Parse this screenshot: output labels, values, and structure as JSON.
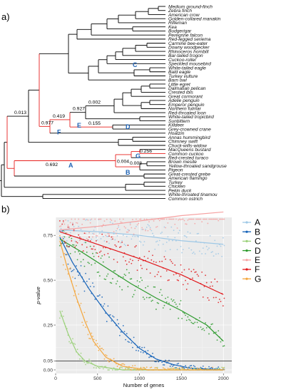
{
  "panel_a_label": "a)",
  "panel_b_label": "b)",
  "tree": {
    "taxa": [
      "Medium ground-finch",
      "Zebra finch",
      "American crow",
      "Golden-collared manakin",
      "Rifleman",
      "Kea",
      "Budgerigar",
      "Peregrine falcon",
      "Red-legged seriema",
      "Carmine bee-eater",
      "Downy woodpecker",
      "Rhinoceros hornbill",
      "Bar-tailed trogon",
      "Cuckoo-roller",
      "Speckled mousebird",
      "White-tailed eagle",
      "Bald eagle",
      "Turkey vulture",
      "Barn owl",
      "Little egret",
      "Dalmatian pelican",
      "Crested ibis",
      "Great cormorant",
      "Adelie penguin",
      "Emperor penguin",
      "Northern fulmar",
      "Red-throated loon",
      "White-tailed tropicbird",
      "Sunbittern",
      "Killdeer",
      "Grey-crowned crane",
      "Hoatzin",
      "Annas hummingbird",
      "Chimney swift",
      "Chuck-wills-widow",
      "MacQueens bustard",
      "Common cuckoo",
      "Red-crested turaco",
      "Brown mesite",
      "Yellow-throated sandgrouse",
      "Pigeon",
      "Great-crested grebe",
      "American flamingo",
      "Turkey",
      "Chicken",
      "Pekin duck",
      "White-throated tinamou",
      "Common ostrich"
    ],
    "branch_lengths": {
      "F": "0.977",
      "root": "0.013",
      "E": "0.419",
      "inner": "0.927",
      "node": "0.002",
      "D": "0.155",
      "A": "0.692",
      "B": "0.004",
      "G": "0.256",
      "B2": "0.008"
    },
    "branch_letters": [
      "A",
      "B",
      "C",
      "D",
      "E",
      "F",
      "G"
    ],
    "red_color": "#e8201e",
    "letter_color": "#1f63b5"
  },
  "chart_data": {
    "type": "scatter",
    "xlabel": "Number of genes",
    "ylabel": "p-value",
    "xlim": [
      0,
      2100
    ],
    "ylim": [
      -0.02,
      0.85
    ],
    "xticks": [
      0,
      500,
      1000,
      1500,
      2000
    ],
    "yticks": [
      0.0,
      0.05,
      0.25,
      0.5,
      0.75
    ],
    "ytick_labels": [
      "0.00",
      "0.05",
      "0.25",
      "0.50",
      "0.75"
    ],
    "hline": 0.05,
    "grid": true,
    "legend_position": "right",
    "series": [
      {
        "name": "A",
        "color": "#9ec8e6",
        "trend": [
          [
            50,
            0.78
          ],
          [
            500,
            0.77
          ],
          [
            1000,
            0.75
          ],
          [
            1500,
            0.72
          ],
          [
            2000,
            0.7
          ]
        ]
      },
      {
        "name": "B",
        "color": "#1462b8",
        "trend": [
          [
            50,
            0.74
          ],
          [
            200,
            0.6
          ],
          [
            400,
            0.45
          ],
          [
            600,
            0.32
          ],
          [
            800,
            0.21
          ],
          [
            1000,
            0.12
          ],
          [
            1200,
            0.06
          ],
          [
            1400,
            0.03
          ],
          [
            1600,
            0.01
          ],
          [
            2000,
            0.0
          ]
        ]
      },
      {
        "name": "C",
        "color": "#9bd17a",
        "trend": [
          [
            50,
            0.33
          ],
          [
            150,
            0.2
          ],
          [
            250,
            0.1
          ],
          [
            350,
            0.05
          ],
          [
            500,
            0.02
          ],
          [
            800,
            0.0
          ],
          [
            2000,
            0.0
          ]
        ]
      },
      {
        "name": "D",
        "color": "#2c9a2c",
        "trend": [
          [
            50,
            0.73
          ],
          [
            300,
            0.66
          ],
          [
            600,
            0.57
          ],
          [
            900,
            0.48
          ],
          [
            1200,
            0.4
          ],
          [
            1500,
            0.33
          ],
          [
            1800,
            0.25
          ],
          [
            2000,
            0.16
          ]
        ]
      },
      {
        "name": "E",
        "color": "#f6a1a1",
        "trend": [
          [
            50,
            0.78
          ],
          [
            500,
            0.8
          ],
          [
            1000,
            0.83
          ],
          [
            1500,
            0.86
          ],
          [
            2000,
            0.88
          ]
        ]
      },
      {
        "name": "F",
        "color": "#e1161a",
        "trend": [
          [
            50,
            0.77
          ],
          [
            500,
            0.7
          ],
          [
            1000,
            0.62
          ],
          [
            1500,
            0.53
          ],
          [
            2000,
            0.42
          ]
        ]
      },
      {
        "name": "G",
        "color": "#f4a63c",
        "trend": [
          [
            50,
            0.72
          ],
          [
            150,
            0.55
          ],
          [
            250,
            0.4
          ],
          [
            350,
            0.27
          ],
          [
            450,
            0.16
          ],
          [
            600,
            0.07
          ],
          [
            800,
            0.02
          ],
          [
            1100,
            0.0
          ],
          [
            2000,
            0.0
          ]
        ]
      }
    ]
  }
}
